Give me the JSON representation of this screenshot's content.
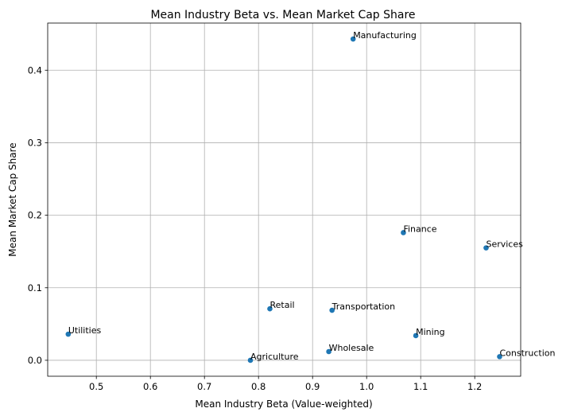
{
  "chart_data": {
    "type": "scatter",
    "title": "Mean Industry Beta vs. Mean Market Cap Share",
    "xlabel": "Mean Industry Beta (Value-weighted)",
    "ylabel": "Mean Market Cap Share",
    "xlim": [
      0.41,
      1.285
    ],
    "ylim": [
      -0.022,
      0.465
    ],
    "xticks": [
      0.5,
      0.6,
      0.7,
      0.8,
      0.9,
      1.0,
      1.1,
      1.2
    ],
    "xtick_labels": [
      "0.5",
      "0.6",
      "0.7",
      "0.8",
      "0.9",
      "1.0",
      "1.1",
      "1.2"
    ],
    "yticks": [
      0.0,
      0.1,
      0.2,
      0.3,
      0.4
    ],
    "ytick_labels": [
      "0.0",
      "0.1",
      "0.2",
      "0.3",
      "0.4"
    ],
    "grid": true,
    "marker_color": "#1f77b4",
    "points": [
      {
        "label": "Manufacturing",
        "x": 0.975,
        "y": 0.443
      },
      {
        "label": "Finance",
        "x": 1.068,
        "y": 0.176
      },
      {
        "label": "Services",
        "x": 1.221,
        "y": 0.155
      },
      {
        "label": "Retail",
        "x": 0.821,
        "y": 0.071
      },
      {
        "label": "Transportation",
        "x": 0.936,
        "y": 0.069
      },
      {
        "label": "Utilities",
        "x": 0.448,
        "y": 0.036
      },
      {
        "label": "Mining",
        "x": 1.091,
        "y": 0.034
      },
      {
        "label": "Wholesale",
        "x": 0.93,
        "y": 0.012
      },
      {
        "label": "Construction",
        "x": 1.246,
        "y": 0.005
      },
      {
        "label": "Agriculture",
        "x": 0.785,
        "y": 0.0
      }
    ]
  }
}
